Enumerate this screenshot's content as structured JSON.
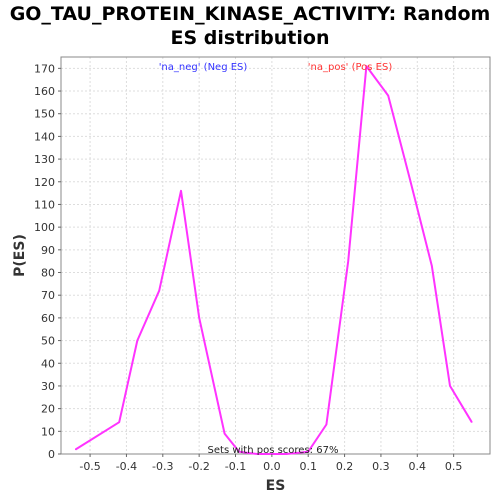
{
  "chart_data": {
    "type": "line",
    "title": "GO_TAU_PROTEIN_KINASE_ACTIVITY: Random ES distribution",
    "xlabel": "ES",
    "ylabel": "P(ES)",
    "xlim": [
      -0.58,
      0.6
    ],
    "ylim": [
      0,
      175
    ],
    "x_ticks": [
      -0.5,
      -0.4,
      -0.3,
      -0.2,
      -0.1,
      0.0,
      0.1,
      0.2,
      0.3,
      0.4,
      0.5
    ],
    "x_tick_labels": [
      "-0.5",
      "-0.4",
      "-0.3",
      "-0.2",
      "-0.1",
      "0.0",
      "0.1",
      "0.2",
      "0.3",
      "0.4",
      "0.5"
    ],
    "y_ticks": [
      0,
      10,
      20,
      30,
      40,
      50,
      60,
      70,
      80,
      90,
      100,
      110,
      120,
      130,
      140,
      150,
      160,
      170
    ],
    "grid": true,
    "series": [
      {
        "color": "#ff33ff",
        "x": [
          -0.54,
          -0.42,
          -0.37,
          -0.31,
          -0.25,
          -0.2,
          -0.13,
          -0.09,
          -0.04,
          0.0,
          0.04,
          0.1,
          0.15,
          0.21,
          0.26,
          0.32,
          0.38,
          0.44,
          0.49,
          0.55
        ],
        "y": [
          2,
          14,
          50,
          72,
          116,
          60,
          9,
          1,
          0,
          0,
          0,
          1,
          13,
          85,
          171,
          158,
          121,
          83,
          30,
          14
        ]
      }
    ],
    "legend": [
      {
        "label": "'na_neg' (Neg ES)",
        "color": "#3333ff"
      },
      {
        "label": "'na_pos' (Pos ES)",
        "color": "#ff3333"
      }
    ],
    "annotations": [
      "Sets with pos scores: 67%"
    ]
  }
}
